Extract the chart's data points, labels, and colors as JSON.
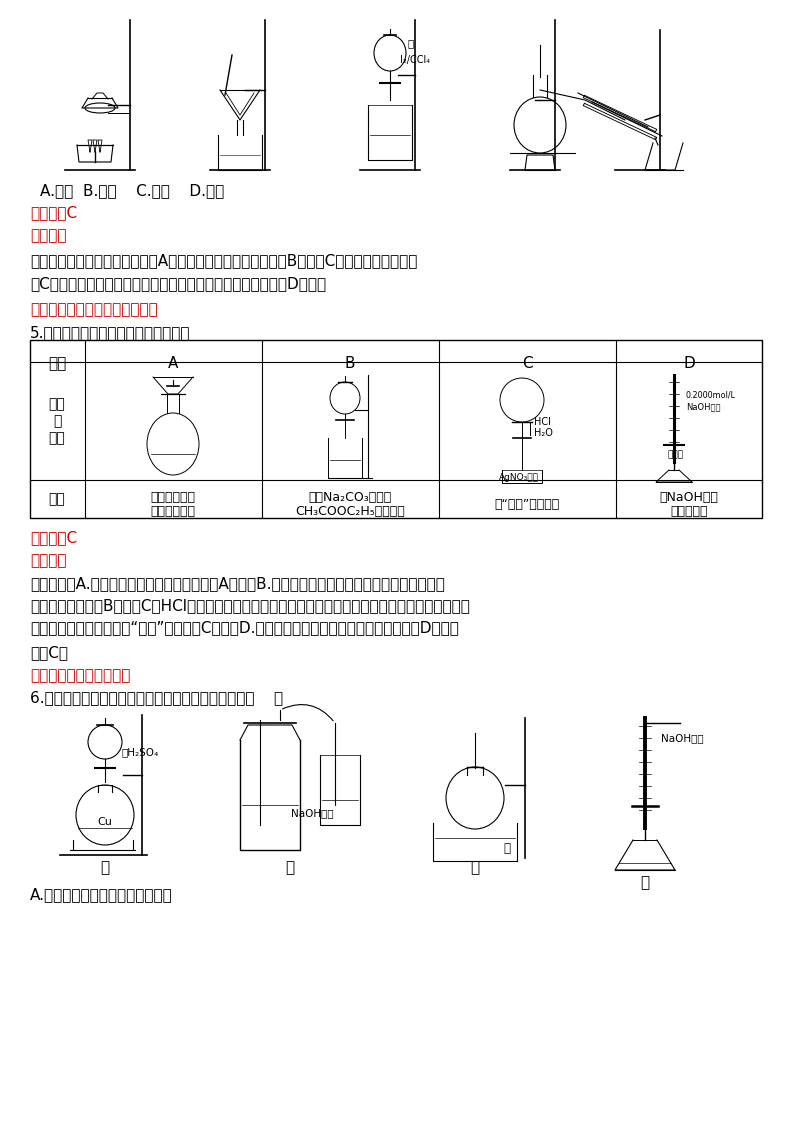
{
  "bg_color": "#ffffff",
  "red_color": "#cc0000",
  "q4_labels": "A.灸烧  B.过滤    C.分液    D.蔓馏",
  "q4_analysis_line1": "试题分析：灸烧固体用崛埚，故A错误；过滤用玻璃棒引流，故B错误；C装置用于分液操作，",
  "q4_analysis_line2": "故C正确；蔓馏操作时，温度计液泡在蔓馏烧瓶的支管口处，故D错误。",
  "q4_note": "考点：本题考查实验基本操作。",
  "q5_title": "5.下列操作或装置能达到实验目的的是",
  "q5_analysis_line1": "试题分析：A.配制溶液时应用玻璃棒引流，故A错误；B.碳酸钓溶液和乙酸乙酯互不相溢，应采用分",
  "q5_analysis_line2": "液的方法分离，故B错误；C．HCl极易溢于水，造成圆底烧瓶内的压强减小，将下方的硒酸馓溶液吸入，",
  "q5_analysis_line3": "生成白色沉淠，从而得到“白色”喷泉，故C正确；D.氮氧化钓溶液应该装在碑式滴定管中，故D错误。",
  "q5_note_line": "故选C。",
  "q5_note": "考点：考查基本实验操作",
  "q6_title": "6.探究浓硫酸和铜的反应，下列装置或操作正确的是（    ）",
  "q6_option_a": "A.用装置甲进行铜和浓硫酸的反应",
  "table_headers": [
    "选项",
    "A",
    "B",
    "C",
    "D"
  ],
  "row2_a1": "配制一定物质",
  "row2_a2": "的量浓度溶液",
  "row2_b1": "分离Na₂CO₃溶液和",
  "row2_b2": "CH₃COOC₂H₅的混合物",
  "row2_c1": "做“白色”喷泉实验",
  "row2_d1": "用NaOH溶液",
  "row2_d2": "滴定稀盐酸"
}
